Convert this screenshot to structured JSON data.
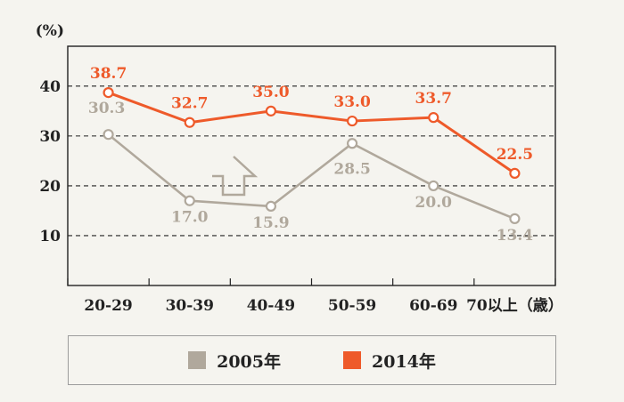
{
  "chart_data": {
    "type": "line",
    "y_unit": "(%)",
    "categories": [
      "20-29",
      "30-39",
      "40-49",
      "50-59",
      "60-69",
      "70以上（歳）"
    ],
    "ylim": [
      0,
      48
    ],
    "yticks": [
      10,
      20,
      30,
      40
    ],
    "grid": "horizontal dashed",
    "legend_position": "bottom",
    "series": [
      {
        "name": "2005年",
        "color": "#b0a89c",
        "values": [
          30.3,
          17.0,
          15.9,
          28.5,
          20.0,
          13.4
        ],
        "labels": [
          "30.3",
          "17.0",
          "15.9",
          "28.5",
          "20.0",
          "13.4"
        ]
      },
      {
        "name": "2014年",
        "color": "#ee5a2a",
        "values": [
          38.7,
          32.7,
          35.0,
          33.0,
          33.7,
          22.5
        ],
        "labels": [
          "38.7",
          "32.7",
          "35.0",
          "33.0",
          "33.7",
          "22.5"
        ]
      }
    ],
    "annotation": "up-arrow"
  }
}
